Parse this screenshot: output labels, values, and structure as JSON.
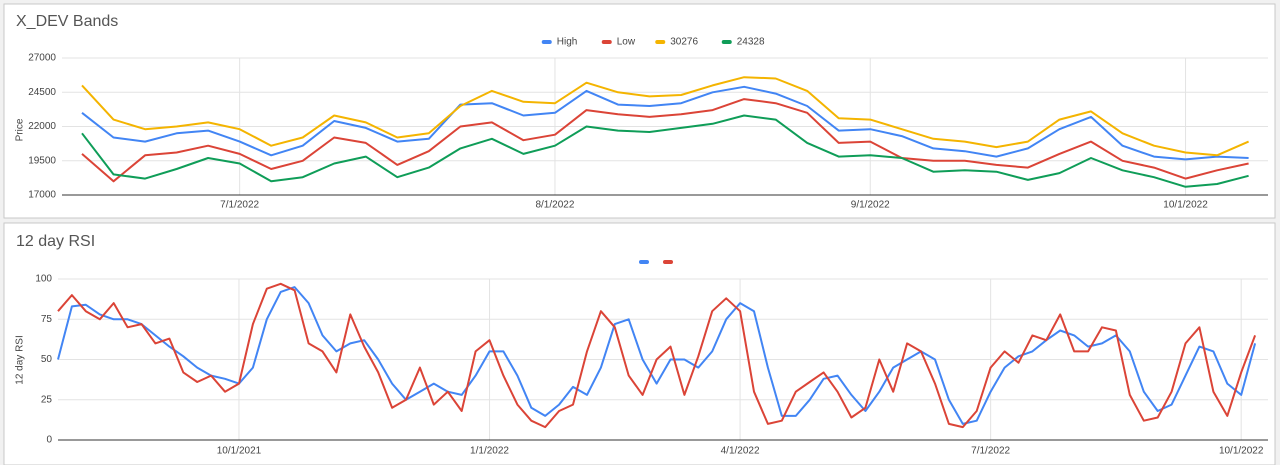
{
  "chart_data": [
    {
      "type": "line",
      "title": "X_DEV Bands",
      "y_label": "Price",
      "legend": "top",
      "grid": true,
      "categories": [
        null,
        null,
        null,
        null,
        null,
        "7/1/2022",
        null,
        null,
        null,
        null,
        null,
        null,
        null,
        null,
        null,
        "8/1/2022",
        null,
        null,
        null,
        null,
        null,
        null,
        null,
        null,
        null,
        "9/1/2022",
        null,
        null,
        null,
        null,
        null,
        null,
        null,
        null,
        null,
        "10/1/2022",
        null,
        null
      ],
      "ylim": [
        17000,
        27000
      ],
      "yticks": [
        17000,
        19500,
        22000,
        24500,
        27000
      ],
      "series": [
        {
          "name": "High",
          "color": "#4285f4",
          "values": [
            23000,
            21200,
            20900,
            21500,
            21700,
            20900,
            19900,
            20600,
            22400,
            21900,
            20900,
            21100,
            23600,
            23700,
            22800,
            23000,
            24600,
            23600,
            23500,
            23700,
            24500,
            24900,
            24400,
            23500,
            21700,
            21800,
            21300,
            20400,
            20200,
            19800,
            20400,
            21800,
            22700,
            20600,
            19800,
            19600,
            19800,
            19700
          ]
        },
        {
          "name": "Low",
          "color": "#db4437",
          "values": [
            20000,
            18000,
            19900,
            20100,
            20600,
            20000,
            18900,
            19500,
            21200,
            20800,
            19200,
            20200,
            22000,
            22300,
            21000,
            21400,
            23200,
            22900,
            22700,
            22900,
            23200,
            24000,
            23700,
            23000,
            20800,
            20900,
            19700,
            19500,
            19500,
            19200,
            19000,
            20000,
            20900,
            19500,
            19000,
            18200,
            18800,
            19300
          ]
        },
        {
          "name": "30276",
          "color": "#f4b400",
          "values": [
            25000,
            22500,
            21800,
            22000,
            22300,
            21800,
            20600,
            21200,
            22800,
            22300,
            21200,
            21500,
            23500,
            24600,
            23800,
            23700,
            25200,
            24500,
            24200,
            24300,
            25000,
            25600,
            25500,
            24600,
            22600,
            22500,
            21800,
            21100,
            20900,
            20500,
            20900,
            22500,
            23100,
            21500,
            20600,
            20100,
            19900,
            20900
          ]
        },
        {
          "name": "24328",
          "color": "#0f9d58",
          "values": [
            21500,
            18500,
            18200,
            18900,
            19700,
            19300,
            18000,
            18300,
            19300,
            19800,
            18300,
            19000,
            20400,
            21100,
            20000,
            20600,
            22000,
            21700,
            21600,
            21900,
            22200,
            22800,
            22500,
            20800,
            19800,
            19900,
            19700,
            18700,
            18800,
            18700,
            18100,
            18600,
            19700,
            18800,
            18300,
            17600,
            17800,
            18400
          ]
        }
      ]
    },
    {
      "type": "line",
      "title": "12 day RSI",
      "y_label": "12 day RSI",
      "legend": "top",
      "grid": true,
      "categories": [
        null,
        null,
        null,
        null,
        null,
        null,
        null,
        null,
        null,
        null,
        null,
        null,
        null,
        "10/1/2021",
        null,
        null,
        null,
        null,
        null,
        null,
        null,
        null,
        null,
        null,
        null,
        null,
        null,
        null,
        null,
        null,
        null,
        "1/1/2022",
        null,
        null,
        null,
        null,
        null,
        null,
        null,
        null,
        null,
        null,
        null,
        null,
        null,
        null,
        null,
        null,
        null,
        "4/1/2022",
        null,
        null,
        null,
        null,
        null,
        null,
        null,
        null,
        null,
        null,
        null,
        null,
        null,
        null,
        null,
        null,
        null,
        "7/1/2022",
        null,
        null,
        null,
        null,
        null,
        null,
        null,
        null,
        null,
        null,
        null,
        null,
        null,
        null,
        null,
        null,
        null,
        "10/1/2022",
        null
      ],
      "ylim": [
        0,
        100
      ],
      "yticks": [
        0,
        25,
        50,
        75,
        100
      ],
      "series": [
        {
          "color": "#4285f4",
          "values": [
            50,
            83,
            84,
            78,
            75,
            75,
            72,
            65,
            58,
            52,
            45,
            40,
            38,
            35,
            45,
            75,
            92,
            95,
            85,
            65,
            55,
            60,
            62,
            50,
            35,
            25,
            30,
            35,
            30,
            28,
            40,
            55,
            55,
            40,
            20,
            15,
            22,
            33,
            28,
            45,
            72,
            75,
            50,
            35,
            50,
            50,
            45,
            55,
            75,
            85,
            80,
            45,
            15,
            15,
            25,
            38,
            40,
            28,
            18,
            30,
            45,
            50,
            55,
            50,
            25,
            10,
            12,
            30,
            45,
            52,
            55,
            62,
            68,
            65,
            58,
            60,
            65,
            55,
            30,
            18,
            22,
            40,
            58,
            55,
            35,
            28,
            60
          ]
        },
        {
          "color": "#db4437",
          "values": [
            80,
            90,
            80,
            75,
            85,
            70,
            72,
            60,
            63,
            42,
            36,
            40,
            30,
            35,
            72,
            94,
            97,
            93,
            60,
            55,
            42,
            78,
            58,
            42,
            20,
            25,
            45,
            22,
            30,
            18,
            55,
            62,
            40,
            22,
            12,
            8,
            18,
            22,
            55,
            80,
            70,
            40,
            28,
            50,
            58,
            28,
            52,
            80,
            88,
            80,
            30,
            10,
            12,
            30,
            36,
            42,
            30,
            14,
            20,
            50,
            30,
            60,
            55,
            35,
            10,
            8,
            18,
            45,
            55,
            48,
            65,
            62,
            78,
            55,
            55,
            70,
            68,
            28,
            12,
            14,
            30,
            60,
            70,
            30,
            15,
            42,
            65
          ]
        }
      ]
    }
  ]
}
